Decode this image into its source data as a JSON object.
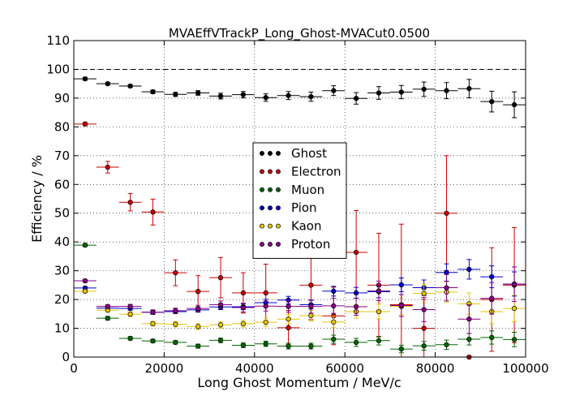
{
  "chart_data": {
    "type": "scatter",
    "title": "MVAEffVTrackP_Long_Ghost-MVACut0.0500",
    "xlabel": "Long Ghost Momentum / MeV/c",
    "ylabel": "Efficiency / %",
    "xlim": [
      0,
      100000
    ],
    "ylim": [
      0,
      110
    ],
    "xticks": [
      "0",
      "20000",
      "40000",
      "60000",
      "80000",
      "100000"
    ],
    "yticks": [
      "0",
      "10",
      "20",
      "30",
      "40",
      "50",
      "60",
      "70",
      "80",
      "90",
      "100",
      "110"
    ],
    "reference_line": 100,
    "grid": true,
    "legend_location": "center",
    "bin_width": 5000,
    "x": [
      2500,
      7500,
      12500,
      17500,
      22500,
      27500,
      32500,
      37500,
      42500,
      47500,
      52500,
      57500,
      62500,
      67500,
      72500,
      77500,
      82500,
      87500,
      92500,
      97500
    ],
    "series": [
      {
        "name": "Ghost",
        "color": "#000000",
        "values": [
          96.7,
          95.0,
          94.2,
          92.2,
          91.3,
          91.8,
          90.7,
          91.2,
          90.2,
          90.9,
          90.5,
          92.6,
          89.9,
          91.8,
          92.1,
          93.1,
          92.6,
          93.3,
          88.8,
          87.7
        ],
        "err": [
          0.5,
          0.5,
          0.5,
          0.6,
          0.7,
          0.8,
          1.0,
          1.1,
          1.3,
          1.4,
          1.6,
          1.7,
          2.0,
          2.2,
          2.3,
          2.5,
          2.8,
          3.2,
          3.6,
          4.5
        ]
      },
      {
        "name": "Electron",
        "color": "#cc0000",
        "values": [
          81.0,
          66.0,
          53.8,
          50.4,
          29.3,
          22.8,
          27.6,
          22.3,
          22.3,
          10.2,
          25.0,
          14.3,
          36.4,
          25.0,
          18.2,
          10.0,
          50.0,
          0.0,
          20.0,
          25.0
        ],
        "err": [
          0.6,
          2.0,
          3.0,
          4.5,
          4.5,
          5.5,
          7.0,
          7.0,
          10.0,
          6.0,
          12.0,
          10.0,
          14.5,
          18.0,
          28.0,
          10.0,
          20.0,
          0.0,
          18.0,
          20.0
        ]
      },
      {
        "name": "Muon",
        "color": "#006600",
        "values": [
          38.9,
          13.5,
          6.5,
          5.6,
          5.1,
          3.8,
          5.8,
          4.1,
          4.6,
          3.8,
          3.8,
          6.2,
          5.1,
          5.7,
          2.8,
          3.9,
          4.3,
          6.2,
          6.8,
          6.1
        ],
        "err": [
          0.5,
          0.6,
          0.6,
          0.6,
          0.6,
          0.7,
          0.8,
          0.8,
          0.9,
          1.0,
          1.0,
          1.4,
          1.4,
          1.5,
          1.3,
          1.5,
          1.6,
          2.0,
          2.3,
          2.5
        ]
      },
      {
        "name": "Pion",
        "color": "#0000cc",
        "values": [
          24.0,
          17.0,
          16.9,
          15.6,
          15.8,
          16.4,
          17.4,
          17.5,
          18.9,
          19.8,
          18.2,
          22.9,
          22.3,
          22.7,
          25.1,
          24.1,
          29.4,
          30.5,
          27.9,
          25.4
        ],
        "err": [
          0.4,
          0.5,
          0.6,
          0.6,
          0.7,
          0.8,
          0.9,
          1.0,
          1.2,
          1.3,
          1.5,
          1.7,
          1.9,
          2.1,
          2.4,
          2.7,
          3.0,
          3.4,
          3.8,
          4.2
        ]
      },
      {
        "name": "Kaon",
        "color": "#e6c300",
        "values": [
          22.9,
          16.3,
          14.9,
          11.6,
          11.4,
          10.6,
          11.2,
          11.6,
          12.1,
          13.2,
          14.4,
          12.2,
          15.8,
          15.8,
          17.6,
          22.1,
          22.6,
          18.5,
          15.8,
          16.9
        ],
        "err": [
          0.5,
          0.7,
          0.8,
          0.8,
          0.9,
          1.0,
          1.1,
          1.2,
          1.4,
          1.6,
          1.8,
          2.0,
          2.3,
          2.6,
          2.9,
          3.2,
          3.5,
          3.8,
          4.2,
          4.6
        ]
      },
      {
        "name": "Proton",
        "color": "#880088",
        "values": [
          26.5,
          17.6,
          17.6,
          15.6,
          16.1,
          16.9,
          18.2,
          17.2,
          17.7,
          17.6,
          17.6,
          17.8,
          17.5,
          23.0,
          17.9,
          16.5,
          24.1,
          13.2,
          20.4,
          25.3
        ],
        "err": [
          0.5,
          0.6,
          0.7,
          0.8,
          0.9,
          1.1,
          1.3,
          1.5,
          1.7,
          2.0,
          2.3,
          2.6,
          3.0,
          3.4,
          3.8,
          4.2,
          4.6,
          5.0,
          5.5,
          6.0
        ]
      }
    ]
  }
}
